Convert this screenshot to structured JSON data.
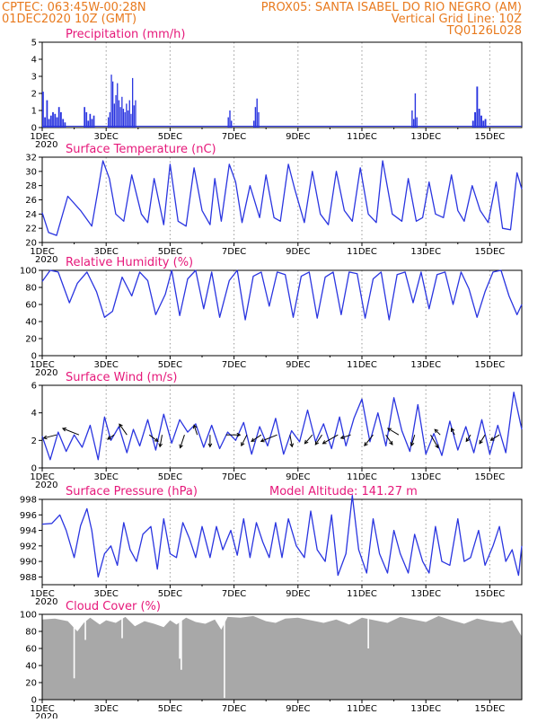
{
  "header": {
    "line1_left": "CPTEC:   063:45W-00:28N",
    "line1_right": "PROX05: SANTA ISABEL DO RIO NEGRO (AM)",
    "line2_left": "01DEC2020 10Z (GMT)",
    "line2_right": "Vertical Grid Line: 10Z",
    "line3_right": "TQ0126L028"
  },
  "colors": {
    "header": "#e87a1e",
    "panel_title": "#e6187a",
    "series": "#2a35e0",
    "precip_bar": "#2a35e0",
    "cloud_fill": "#a8a8a8",
    "wind_arrow": "#000000",
    "grid": "#9a9a9a"
  },
  "x_axis": {
    "start_day": 1,
    "end_day": 16,
    "tick_labels": [
      "1DEC",
      "3DEC",
      "5DEC",
      "7DEC",
      "9DEC",
      "11DEC",
      "13DEC",
      "15DEC"
    ],
    "tick_days": [
      1,
      3,
      5,
      7,
      9,
      11,
      13,
      15
    ],
    "year_label": "2020"
  },
  "chart_data": [
    {
      "id": "precipitation",
      "type": "bar",
      "title": "Precipitation (mm/h)",
      "ylim": [
        0,
        5
      ],
      "yticks": [
        0,
        1,
        2,
        3,
        4,
        5
      ],
      "grid": true,
      "events": [
        {
          "start": 1.0,
          "end": 1.75,
          "values": [
            2.1,
            0.6,
            1.6,
            0.5,
            0.7,
            0.9,
            0.8,
            0.6,
            1.2,
            0.9,
            0.5,
            0.3
          ]
        },
        {
          "start": 2.3,
          "end": 2.65,
          "values": [
            1.2,
            0.9,
            0.4,
            0.8,
            0.5,
            0.7
          ]
        },
        {
          "start": 3.05,
          "end": 3.95,
          "values": [
            0.6,
            0.9,
            3.1,
            2.7,
            1.4,
            1.9,
            2.6,
            1.6,
            1.2,
            1.8,
            1.1,
            0.9,
            1.4,
            1.0,
            1.6,
            0.8,
            2.9,
            1.3,
            1.6
          ]
        },
        {
          "start": 6.8,
          "end": 6.95,
          "values": [
            0.6,
            1.0,
            0.4
          ]
        },
        {
          "start": 7.6,
          "end": 7.8,
          "values": [
            0.4,
            1.2,
            1.7,
            0.9
          ]
        },
        {
          "start": 12.55,
          "end": 12.75,
          "values": [
            1.0,
            0.5,
            2.0,
            0.6
          ]
        },
        {
          "start": 14.45,
          "end": 14.9,
          "values": [
            0.4,
            0.9,
            2.4,
            1.1,
            0.7,
            0.4,
            0.5
          ]
        }
      ],
      "drizzle": 0.08
    },
    {
      "id": "temperature",
      "type": "line",
      "title": "Surface Temperature (nC)",
      "ylim": [
        20,
        32
      ],
      "yticks": [
        20,
        22,
        24,
        26,
        28,
        30,
        32
      ],
      "grid": true,
      "x": [
        1.0,
        1.2,
        1.45,
        1.8,
        2.2,
        2.55,
        2.75,
        2.9,
        3.1,
        3.3,
        3.55,
        3.8,
        4.1,
        4.3,
        4.5,
        4.8,
        5.0,
        5.25,
        5.5,
        5.75,
        6.0,
        6.25,
        6.4,
        6.6,
        6.85,
        7.05,
        7.25,
        7.5,
        7.8,
        8.0,
        8.25,
        8.45,
        8.7,
        8.9,
        9.2,
        9.45,
        9.7,
        9.95,
        10.2,
        10.45,
        10.7,
        10.95,
        11.2,
        11.45,
        11.65,
        11.95,
        12.25,
        12.45,
        12.7,
        12.9,
        13.1,
        13.3,
        13.55,
        13.8,
        14.0,
        14.2,
        14.45,
        14.7,
        14.95,
        15.2,
        15.4,
        15.65,
        15.85,
        16.0
      ],
      "y": [
        24.2,
        21.4,
        21.0,
        26.5,
        24.5,
        22.3,
        27.5,
        31.5,
        29.0,
        24.0,
        23.0,
        29.5,
        24.0,
        22.8,
        29.0,
        22.5,
        31.0,
        23.0,
        22.3,
        30.5,
        24.5,
        22.5,
        29.0,
        23.0,
        31.0,
        28.5,
        22.8,
        28.0,
        23.5,
        29.5,
        23.5,
        23.0,
        31.0,
        27.5,
        22.8,
        30.0,
        24.0,
        22.5,
        30.0,
        24.5,
        23.0,
        30.5,
        24.0,
        22.8,
        31.5,
        24.0,
        23.0,
        29.0,
        23.0,
        23.5,
        28.5,
        24.0,
        23.5,
        29.5,
        24.5,
        23.0,
        28.0,
        24.5,
        22.8,
        28.5,
        22.0,
        21.8,
        29.8,
        27.5
      ]
    },
    {
      "id": "relative_humidity",
      "type": "line",
      "title": "Relative Humidity (%)",
      "ylim": [
        0,
        100
      ],
      "yticks": [
        0,
        20,
        40,
        60,
        80,
        100
      ],
      "grid": true,
      "x": [
        1.0,
        1.25,
        1.5,
        1.85,
        2.1,
        2.4,
        2.7,
        2.95,
        3.2,
        3.5,
        3.8,
        4.05,
        4.3,
        4.55,
        4.85,
        5.05,
        5.3,
        5.55,
        5.8,
        6.05,
        6.3,
        6.55,
        6.85,
        7.1,
        7.35,
        7.6,
        7.85,
        8.1,
        8.35,
        8.6,
        8.85,
        9.1,
        9.35,
        9.6,
        9.85,
        10.1,
        10.35,
        10.6,
        10.85,
        11.1,
        11.35,
        11.6,
        11.85,
        12.1,
        12.35,
        12.6,
        12.85,
        13.1,
        13.35,
        13.6,
        13.85,
        14.1,
        14.35,
        14.6,
        14.85,
        15.1,
        15.35,
        15.6,
        15.85,
        16.0
      ],
      "y": [
        87,
        100,
        98,
        62,
        85,
        98,
        75,
        45,
        52,
        92,
        70,
        98,
        88,
        48,
        72,
        100,
        47,
        90,
        100,
        55,
        98,
        45,
        88,
        100,
        42,
        93,
        98,
        58,
        98,
        95,
        45,
        93,
        98,
        44,
        92,
        98,
        48,
        98,
        96,
        44,
        90,
        98,
        42,
        95,
        98,
        62,
        98,
        55,
        95,
        98,
        60,
        98,
        78,
        45,
        75,
        98,
        100,
        70,
        48,
        60
      ]
    },
    {
      "id": "surface_wind",
      "type": "line",
      "title": "Surface Wind (m/s)",
      "ylim": [
        0,
        6
      ],
      "yticks": [
        0,
        2,
        4,
        6
      ],
      "grid": true,
      "x": [
        1.0,
        1.25,
        1.5,
        1.75,
        2.0,
        2.25,
        2.5,
        2.75,
        2.95,
        3.15,
        3.4,
        3.65,
        3.85,
        4.05,
        4.3,
        4.55,
        4.8,
        5.05,
        5.3,
        5.55,
        5.8,
        6.05,
        6.3,
        6.55,
        6.8,
        7.05,
        7.3,
        7.55,
        7.8,
        8.05,
        8.3,
        8.55,
        8.8,
        9.05,
        9.3,
        9.55,
        9.8,
        10.05,
        10.3,
        10.5,
        10.75,
        11.0,
        11.25,
        11.5,
        11.75,
        12.0,
        12.25,
        12.5,
        12.75,
        13.0,
        13.25,
        13.5,
        13.75,
        14.0,
        14.25,
        14.5,
        14.75,
        15.0,
        15.25,
        15.5,
        15.75,
        16.0
      ],
      "y": [
        2.3,
        0.6,
        2.6,
        1.2,
        2.4,
        1.5,
        3.1,
        0.6,
        3.7,
        2.0,
        3.0,
        1.1,
        2.8,
        1.6,
        3.5,
        1.3,
        3.9,
        1.8,
        3.5,
        2.6,
        3.2,
        1.5,
        3.1,
        1.4,
        2.6,
        2.0,
        3.3,
        1.0,
        3.0,
        1.6,
        3.6,
        1.0,
        2.7,
        1.9,
        4.2,
        1.9,
        3.2,
        1.4,
        3.7,
        1.6,
        3.6,
        5.0,
        1.9,
        4.0,
        1.6,
        5.1,
        2.7,
        1.2,
        4.6,
        1.0,
        2.5,
        0.9,
        3.4,
        1.3,
        3.0,
        1.1,
        3.5,
        1.0,
        3.1,
        1.1,
        5.5,
        2.8
      ],
      "arrows": [
        {
          "day": 1.45,
          "u": -1.2,
          "v": -0.3
        },
        {
          "day": 2.15,
          "u": -1.5,
          "v": 0.6
        },
        {
          "day": 3.25,
          "u": -0.6,
          "v": -0.4
        },
        {
          "day": 3.65,
          "u": -0.7,
          "v": 1.0
        },
        {
          "day": 4.35,
          "u": 0.8,
          "v": -0.6
        },
        {
          "day": 4.75,
          "u": -0.2,
          "v": -1.1
        },
        {
          "day": 5.45,
          "u": -0.4,
          "v": -1.2
        },
        {
          "day": 5.85,
          "u": -0.3,
          "v": 0.9
        },
        {
          "day": 6.25,
          "u": 0.0,
          "v": -1.1
        },
        {
          "day": 6.75,
          "u": 1.3,
          "v": 0.0
        },
        {
          "day": 7.4,
          "u": -0.5,
          "v": -1.0
        },
        {
          "day": 7.85,
          "u": -0.9,
          "v": -0.6
        },
        {
          "day": 8.35,
          "u": -1.5,
          "v": -0.6
        },
        {
          "day": 8.75,
          "u": 0.2,
          "v": -1.1
        },
        {
          "day": 9.45,
          "u": -0.7,
          "v": -0.8
        },
        {
          "day": 9.75,
          "u": -0.6,
          "v": -0.9
        },
        {
          "day": 10.25,
          "u": -1.4,
          "v": -0.8
        },
        {
          "day": 10.65,
          "u": -0.9,
          "v": -0.3
        },
        {
          "day": 11.35,
          "u": -0.8,
          "v": -1.0
        },
        {
          "day": 11.75,
          "u": 0.6,
          "v": -0.9
        },
        {
          "day": 12.15,
          "u": -1.0,
          "v": 0.6
        },
        {
          "day": 12.65,
          "u": -0.3,
          "v": -1.0
        },
        {
          "day": 13.15,
          "u": 0.7,
          "v": -1.2
        },
        {
          "day": 13.45,
          "u": -0.5,
          "v": 0.5
        },
        {
          "day": 13.9,
          "u": -0.3,
          "v": 0.6
        },
        {
          "day": 14.4,
          "u": -0.4,
          "v": -0.6
        },
        {
          "day": 14.85,
          "u": -0.5,
          "v": -0.8
        },
        {
          "day": 15.3,
          "u": -0.8,
          "v": -0.5
        }
      ]
    },
    {
      "id": "surface_pressure",
      "type": "line",
      "title": "Surface Pressure (hPa)",
      "subtitle": "Model Altitude: 141.27 m",
      "ylim": [
        987,
        998
      ],
      "yticks": [
        988,
        990,
        992,
        994,
        996,
        998
      ],
      "grid": true,
      "x": [
        1.0,
        1.3,
        1.55,
        1.75,
        2.0,
        2.2,
        2.4,
        2.55,
        2.75,
        2.95,
        3.15,
        3.35,
        3.55,
        3.75,
        3.95,
        4.15,
        4.4,
        4.6,
        4.8,
        5.0,
        5.2,
        5.4,
        5.6,
        5.8,
        6.0,
        6.25,
        6.45,
        6.65,
        6.9,
        7.1,
        7.3,
        7.5,
        7.7,
        7.9,
        8.1,
        8.3,
        8.5,
        8.7,
        8.95,
        9.2,
        9.4,
        9.6,
        9.85,
        10.05,
        10.25,
        10.5,
        10.7,
        10.9,
        11.15,
        11.35,
        11.55,
        11.8,
        12.0,
        12.2,
        12.45,
        12.65,
        12.9,
        13.1,
        13.3,
        13.5,
        13.75,
        14.0,
        14.2,
        14.4,
        14.65,
        14.85,
        15.1,
        15.3,
        15.5,
        15.7,
        15.9,
        16.0
      ],
      "y": [
        994.8,
        994.9,
        996.0,
        994.0,
        990.5,
        994.6,
        996.8,
        994.0,
        988.0,
        991.0,
        992.0,
        989.5,
        995.0,
        991.5,
        990.0,
        993.5,
        994.5,
        989.0,
        995.5,
        991.0,
        990.5,
        995.0,
        993.0,
        990.5,
        994.5,
        990.5,
        994.5,
        991.5,
        994.0,
        990.8,
        995.5,
        990.5,
        995.0,
        992.5,
        990.5,
        995.0,
        990.5,
        995.5,
        992.0,
        990.5,
        996.5,
        991.5,
        990.0,
        996.0,
        988.2,
        991.0,
        998.5,
        991.5,
        988.5,
        995.5,
        991.0,
        988.5,
        994.0,
        991.0,
        988.5,
        993.5,
        990.0,
        988.5,
        994.5,
        990.0,
        989.5,
        995.5,
        990.0,
        990.5,
        994.0,
        989.5,
        992.0,
        994.5,
        990.0,
        991.5,
        988.2,
        992.0
      ]
    },
    {
      "id": "cloud_cover",
      "type": "area",
      "title": "Cloud Cover (%)",
      "ylim": [
        0,
        100
      ],
      "yticks": [
        0,
        20,
        40,
        60,
        80,
        100
      ],
      "grid": false,
      "x": [
        1.0,
        1.4,
        1.8,
        2.1,
        2.3,
        2.5,
        2.8,
        3.0,
        3.3,
        3.6,
        3.9,
        4.2,
        4.5,
        4.8,
        5.0,
        5.2,
        5.5,
        5.8,
        6.1,
        6.4,
        6.6,
        6.8,
        7.2,
        7.6,
        8.0,
        8.3,
        8.6,
        9.0,
        9.4,
        9.8,
        10.2,
        10.6,
        11.0,
        11.4,
        11.8,
        12.2,
        12.6,
        13.0,
        13.4,
        13.8,
        14.2,
        14.6,
        15.0,
        15.4,
        15.7,
        16.0
      ],
      "y": [
        94,
        95,
        92,
        80,
        90,
        96,
        88,
        93,
        90,
        97,
        86,
        92,
        89,
        85,
        93,
        88,
        96,
        91,
        89,
        94,
        82,
        97,
        96,
        98,
        92,
        90,
        95,
        96,
        93,
        90,
        94,
        88,
        96,
        93,
        90,
        97,
        94,
        91,
        98,
        93,
        89,
        95,
        92,
        90,
        93,
        74
      ],
      "dips": [
        {
          "day": 2.0,
          "value": 25
        },
        {
          "day": 2.35,
          "value": 70
        },
        {
          "day": 3.5,
          "value": 72
        },
        {
          "day": 5.3,
          "value": 48
        },
        {
          "day": 5.35,
          "value": 35
        },
        {
          "day": 6.7,
          "value": 2
        },
        {
          "day": 11.2,
          "value": 60
        }
      ]
    }
  ]
}
